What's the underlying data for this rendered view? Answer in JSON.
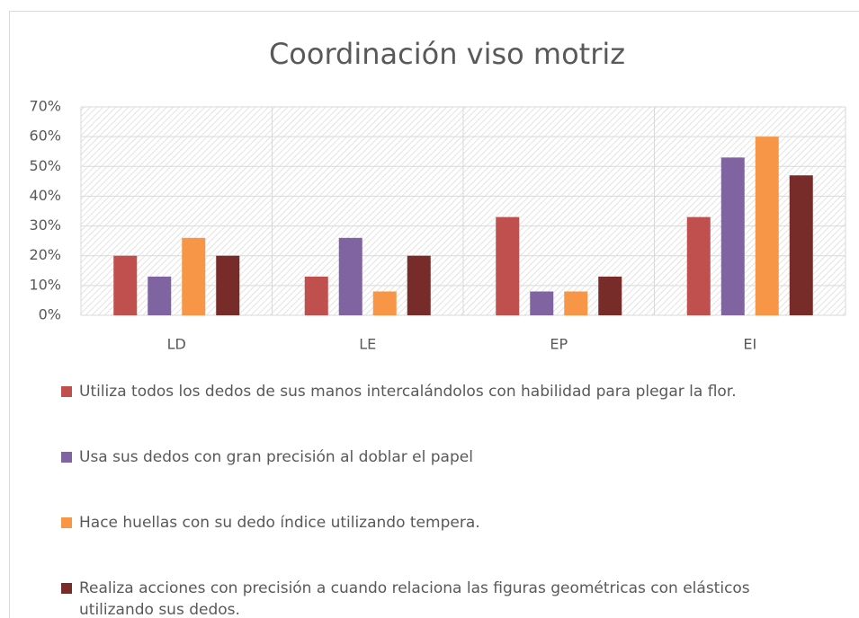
{
  "chart_data": {
    "type": "bar",
    "title": "Coordinación viso motriz",
    "categories": [
      "LD",
      "LE",
      "EP",
      "EI"
    ],
    "series": [
      {
        "name": "Utiliza todos los dedos de sus manos intercalándolos con habilidad para plegar la flor.",
        "color": "#c0504d",
        "values": [
          20,
          13,
          33,
          33
        ]
      },
      {
        "name": "Usa sus dedos con gran precisión al doblar el papel",
        "color": "#8064a2",
        "values": [
          13,
          26,
          8,
          53
        ]
      },
      {
        "name": "Hace huellas con su dedo índice utilizando tempera.",
        "color": "#f79646",
        "values": [
          26,
          8,
          8,
          60
        ]
      },
      {
        "name": "Realiza acciones con precisión a cuando relaciona las figuras geométricas con elásticos utilizando sus dedos.",
        "color": "#772c2a",
        "values": [
          20,
          20,
          13,
          47
        ]
      }
    ],
    "ylim": [
      0,
      70
    ],
    "yticks": [
      {
        "value": 0,
        "label": "0%"
      },
      {
        "value": 10,
        "label": "10%"
      },
      {
        "value": 20,
        "label": "20%"
      },
      {
        "value": 30,
        "label": "30%"
      },
      {
        "value": 40,
        "label": "40%"
      },
      {
        "value": 50,
        "label": "50%"
      },
      {
        "value": 60,
        "label": "60%"
      },
      {
        "value": 70,
        "label": "70%"
      }
    ],
    "grid": true,
    "legend": "bottom"
  }
}
